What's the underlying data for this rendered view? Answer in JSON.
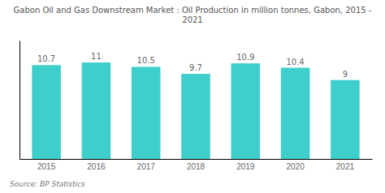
{
  "chart_data": {
    "type": "bar",
    "title": "Gabon Oil and Gas Downstream Market : Oil Production in million tonnes, Gabon, 2015 - 2021",
    "categories": [
      "2015",
      "2016",
      "2017",
      "2018",
      "2019",
      "2020",
      "2021"
    ],
    "values": [
      10.7,
      11,
      10.5,
      9.7,
      10.9,
      10.4,
      9
    ],
    "color": "#3ECFCC",
    "ylim": [
      0,
      13.5
    ],
    "grid": false,
    "data_labels": true,
    "tick_labels": "x",
    "annotations": [
      "Source: BP Statistics"
    ]
  }
}
